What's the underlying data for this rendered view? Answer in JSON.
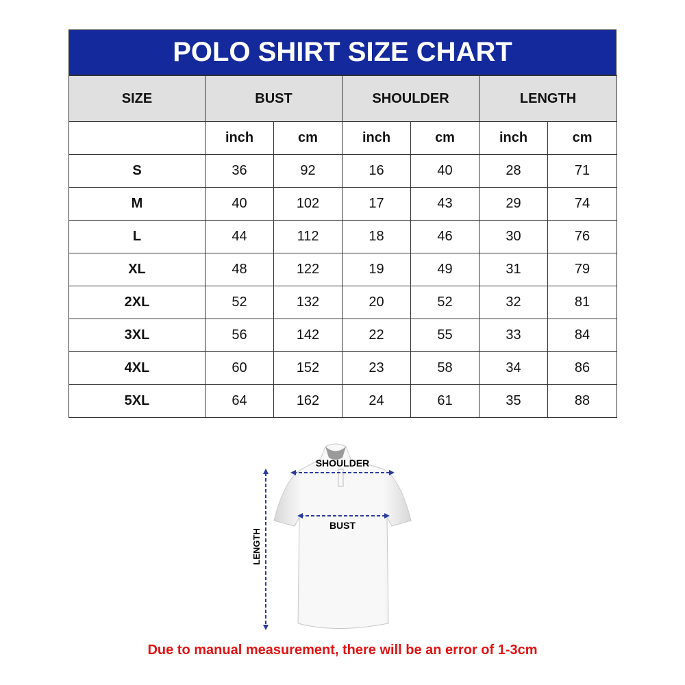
{
  "title": "POLO SHIRT SIZE CHART",
  "headers": {
    "size": "SIZE",
    "bust": "BUST",
    "shoulder": "SHOULDER",
    "length": "LENGTH"
  },
  "units": [
    "inch",
    "cm",
    "inch",
    "cm",
    "inch",
    "cm"
  ],
  "rows": [
    {
      "size": "S",
      "values": [
        "36",
        "92",
        "16",
        "40",
        "28",
        "71"
      ]
    },
    {
      "size": "M",
      "values": [
        "40",
        "102",
        "17",
        "43",
        "29",
        "74"
      ]
    },
    {
      "size": "L",
      "values": [
        "44",
        "112",
        "18",
        "46",
        "30",
        "76"
      ]
    },
    {
      "size": "XL",
      "values": [
        "48",
        "122",
        "19",
        "49",
        "31",
        "79"
      ]
    },
    {
      "size": "2XL",
      "values": [
        "52",
        "132",
        "20",
        "52",
        "32",
        "81"
      ]
    },
    {
      "size": "3XL",
      "values": [
        "56",
        "142",
        "22",
        "55",
        "33",
        "84"
      ]
    },
    {
      "size": "4XL",
      "values": [
        "60",
        "152",
        "23",
        "58",
        "34",
        "86"
      ]
    },
    {
      "size": "5XL",
      "values": [
        "64",
        "162",
        "24",
        "61",
        "35",
        "88"
      ]
    }
  ],
  "diagram": {
    "shoulder": "SHOULDER",
    "bust": "BUST",
    "length": "LENGTH"
  },
  "note": "Due to manual measurement, there will be an error of 1-3cm",
  "colors": {
    "header_blue": "#13299c",
    "header_gray": "#e0e0e0",
    "note_red": "#e01414",
    "arrow_blue": "#2a3b9a"
  }
}
